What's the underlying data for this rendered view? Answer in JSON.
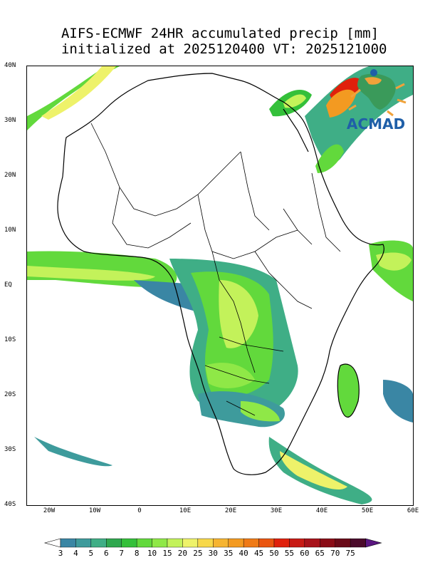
{
  "title": {
    "line1": "AIFS-ECMWF 24HR accumulated precip [mm]",
    "line2": " initialized at 2025120400 VT: 2025121000"
  },
  "axes": {
    "lat_labels": [
      "40N",
      "30N",
      "20N",
      "10N",
      "EQ",
      "10S",
      "20S",
      "30S",
      "40S"
    ],
    "lon_labels": [
      "20W",
      "10W",
      "0",
      "10E",
      "20E",
      "30E",
      "40E",
      "50E",
      "60E"
    ],
    "lat_range": [
      -40,
      40
    ],
    "lon_range": [
      -25,
      60
    ]
  },
  "logo": {
    "text": "ACMAD",
    "icon": "africa-map-logo-icon"
  },
  "colorbar": {
    "labels": [
      "3",
      "4",
      "5",
      "6",
      "7",
      "8",
      "10",
      "15",
      "20",
      "25",
      "30",
      "35",
      "40",
      "45",
      "50",
      "55",
      "60",
      "65",
      "70",
      "75"
    ],
    "colors": [
      "#3a86a4",
      "#3e9b9c",
      "#3fae86",
      "#2fa84f",
      "#34c03a",
      "#62d93c",
      "#8fe847",
      "#c3f25a",
      "#eef26a",
      "#f7d84a",
      "#f6b431",
      "#f39a21",
      "#ef7a16",
      "#ea5510",
      "#e0200c",
      "#c81a14",
      "#a8121a",
      "#8a0c16",
      "#6a0a18",
      "#4a0a2a",
      "#5a1680"
    ]
  }
}
